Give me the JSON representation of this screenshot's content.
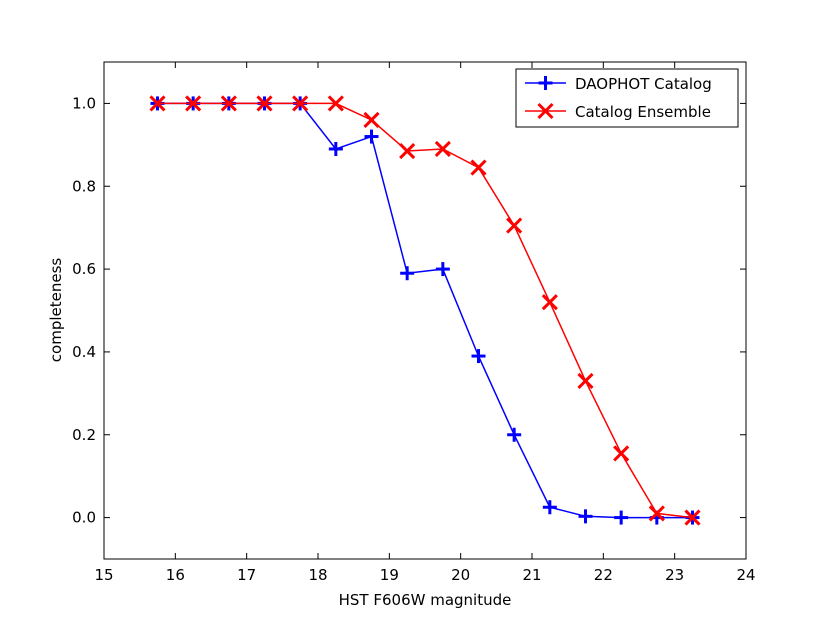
{
  "chart_data": {
    "type": "line",
    "title": "",
    "xlabel": "HST F606W magnitude",
    "ylabel": "completeness",
    "xlim": [
      15,
      24
    ],
    "ylim": [
      -0.1,
      1.1
    ],
    "xticks": [
      15,
      16,
      17,
      18,
      19,
      20,
      21,
      22,
      23,
      24
    ],
    "yticks": [
      0.0,
      0.2,
      0.4,
      0.6,
      0.8,
      1.0
    ],
    "xtick_labels": [
      "15",
      "16",
      "17",
      "18",
      "19",
      "20",
      "21",
      "22",
      "23",
      "24"
    ],
    "ytick_labels": [
      "0.0",
      "0.2",
      "0.4",
      "0.6",
      "0.8",
      "1.0"
    ],
    "grid": false,
    "legend_position": "top-right",
    "x": [
      15.75,
      16.25,
      16.75,
      17.25,
      17.75,
      18.25,
      18.75,
      19.25,
      19.75,
      20.25,
      20.75,
      21.25,
      21.75,
      22.25,
      22.75,
      23.25
    ],
    "series": [
      {
        "name": "DAOPHOT Catalog",
        "color": "#0000ff",
        "marker": "plus",
        "values": [
          1.0,
          1.0,
          1.0,
          1.0,
          1.0,
          0.89,
          0.92,
          0.59,
          0.6,
          0.39,
          0.2,
          0.025,
          0.003,
          0.0,
          0.0,
          0.0
        ]
      },
      {
        "name": "Catalog Ensemble",
        "color": "#ff0000",
        "marker": "x",
        "values": [
          1.0,
          1.0,
          1.0,
          1.0,
          1.0,
          1.0,
          0.96,
          0.885,
          0.89,
          0.845,
          0.705,
          0.52,
          0.33,
          0.155,
          0.01,
          0.0
        ]
      }
    ]
  }
}
